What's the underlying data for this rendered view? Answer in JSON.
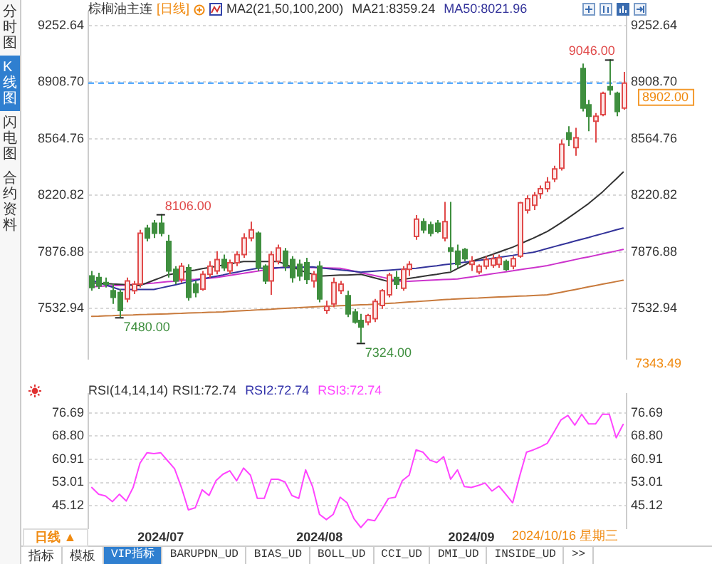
{
  "chart_data": [
    {
      "type": "candlestick",
      "title": "棕榈油主连",
      "subtitle": "[日线]",
      "legend_title": "MA2(21,50,100,200)",
      "legend": "top",
      "tick_labels": "y",
      "grid": "y",
      "marker": "none",
      "line_style": "solid",
      "categories": [
        null,
        null,
        null,
        null,
        null,
        null,
        null,
        null,
        null,
        null,
        "2024/07",
        null,
        null,
        null,
        null,
        null,
        null,
        null,
        null,
        null,
        null,
        null,
        null,
        null,
        null,
        null,
        null,
        null,
        null,
        null,
        null,
        null,
        null,
        "2024/08",
        null,
        null,
        null,
        null,
        null,
        null,
        null,
        null,
        null,
        null,
        null,
        null,
        null,
        null,
        null,
        null,
        null,
        null,
        null,
        null,
        null,
        "2024/09",
        null,
        null,
        null,
        null,
        null,
        null,
        null,
        null,
        null,
        null,
        null,
        null,
        null,
        null,
        null,
        null,
        null,
        null,
        null,
        null,
        null,
        null
      ],
      "ohlc": [
        [
          7730,
          7760,
          7640,
          7660
        ],
        [
          7720,
          7750,
          7650,
          7670
        ],
        [
          7690,
          7720,
          7660,
          7680
        ],
        [
          7640,
          7680,
          7560,
          7600
        ],
        [
          7630,
          7650,
          7480,
          7520
        ],
        [
          7590,
          7720,
          7570,
          7700
        ],
        [
          7640,
          7700,
          7620,
          7680
        ],
        [
          7680,
          8010,
          7660,
          7990
        ],
        [
          8020,
          8040,
          7940,
          7960
        ],
        [
          8050,
          8070,
          7960,
          7990
        ],
        [
          8050,
          8106,
          7970,
          7990
        ],
        [
          7940,
          7980,
          7720,
          7760
        ],
        [
          7770,
          7790,
          7680,
          7700
        ],
        [
          7710,
          7810,
          7690,
          7790
        ],
        [
          7780,
          7800,
          7580,
          7600
        ],
        [
          7680,
          7700,
          7600,
          7630
        ],
        [
          7650,
          7760,
          7640,
          7740
        ],
        [
          7740,
          7820,
          7720,
          7790
        ],
        [
          7760,
          7880,
          7740,
          7830
        ],
        [
          7830,
          7860,
          7760,
          7780
        ],
        [
          7760,
          7830,
          7740,
          7810
        ],
        [
          7810,
          7880,
          7790,
          7860
        ],
        [
          7860,
          7990,
          7840,
          7960
        ],
        [
          7960,
          8060,
          7940,
          8010
        ],
        [
          7990,
          8000,
          7760,
          7780
        ],
        [
          7790,
          7800,
          7680,
          7700
        ],
        [
          7700,
          7880,
          7615,
          7860
        ],
        [
          7820,
          7920,
          7800,
          7900
        ],
        [
          7880,
          7900,
          7760,
          7790
        ],
        [
          7830,
          7850,
          7690,
          7720
        ],
        [
          7800,
          7830,
          7700,
          7730
        ],
        [
          7810,
          7840,
          7680,
          7710
        ],
        [
          7700,
          7760,
          7660,
          7740
        ],
        [
          7790,
          7820,
          7570,
          7590
        ],
        [
          7520,
          7580,
          7500,
          7545
        ],
        [
          7560,
          7720,
          7540,
          7690
        ],
        [
          7640,
          7700,
          7620,
          7680
        ],
        [
          7610,
          7640,
          7480.5,
          7500
        ],
        [
          7510,
          7530,
          7440,
          7450
        ],
        [
          7460,
          7500,
          7324,
          7420
        ],
        [
          7450,
          7500,
          7430,
          7490
        ],
        [
          7470,
          7590,
          7450,
          7575
        ],
        [
          7550,
          7650,
          7530,
          7640
        ],
        [
          7615,
          7750,
          7600,
          7735
        ],
        [
          7720,
          7760,
          7650,
          7680
        ],
        [
          7655,
          7790,
          7640,
          7770
        ],
        [
          7770,
          7820,
          7730,
          7800
        ],
        [
          7970,
          8100,
          7950,
          8075
        ],
        [
          8060,
          8080,
          7990,
          8010
        ],
        [
          8040,
          8060,
          7970,
          7990
        ],
        [
          8050,
          8070,
          7990,
          8000
        ],
        [
          7960,
          8180,
          7940,
          8060
        ],
        [
          7900,
          8180,
          7760,
          7880
        ],
        [
          7880,
          7920,
          7780,
          7800
        ],
        [
          7890,
          7900,
          7820,
          7835
        ],
        [
          7800,
          7850,
          7760,
          7820
        ],
        [
          7755,
          7800,
          7740,
          7790
        ],
        [
          7790,
          7850,
          7770,
          7830
        ],
        [
          7795,
          7860,
          7780,
          7835
        ],
        [
          7800,
          7860,
          7780,
          7840
        ],
        [
          7818,
          7830,
          7760,
          7770
        ],
        [
          7790,
          7850,
          7770,
          7835
        ],
        [
          7850,
          8180,
          7840,
          8175
        ],
        [
          8130,
          8220,
          8110,
          8200
        ],
        [
          8160,
          8240,
          8130,
          8220
        ],
        [
          8230,
          8280,
          8200,
          8260
        ],
        [
          8260,
          8330,
          8240,
          8300
        ],
        [
          8320,
          8400,
          8300,
          8380
        ],
        [
          8385,
          8560,
          8370,
          8530
        ],
        [
          8600,
          8640,
          8520,
          8560
        ],
        [
          8510,
          8630,
          8460,
          8570
        ],
        [
          8990,
          9020,
          8730,
          8750
        ],
        [
          8770,
          8800,
          8610,
          8700
        ],
        [
          8670,
          8720,
          8540,
          8700
        ],
        [
          8710,
          8850,
          8700,
          8840
        ],
        [
          8880,
          9046,
          8830,
          8860
        ],
        [
          8840,
          8850,
          8700,
          8730
        ],
        [
          8750,
          8970,
          8740,
          8902
        ]
      ],
      "series": [
        {
          "type": "line",
          "name": "MA21:8359.24",
          "color": "#333333",
          "values": [
            7688,
            7686,
            7684,
            7681,
            7679,
            7677,
            7674,
            7672,
            7688,
            7704,
            7720,
            7737,
            7744,
            7752,
            7759,
            7766,
            7774,
            7781,
            7788,
            7796,
            7803,
            7811,
            7818,
            7818,
            7818,
            7818,
            7818,
            7818,
            7802,
            7785,
            7769,
            7753,
            7741,
            7729,
            7731,
            7733,
            7735,
            7736,
            7738,
            7740,
            7729,
            7718,
            7707,
            7696,
            7702,
            7709,
            7715,
            7721,
            7728,
            7734,
            7740,
            7747,
            7753,
            7775,
            7796,
            7818,
            7832,
            7846,
            7860,
            7875,
            7890,
            7905,
            7923,
            7942,
            7960,
            7980,
            8000,
            8026,
            8053,
            8081,
            8110,
            8140,
            8170,
            8205,
            8240,
            8280,
            8320,
            8361
          ]
        },
        {
          "type": "line",
          "name": "MA50:8021.96",
          "color": "#33339a",
          "values": [
            7704,
            7690,
            7676,
            7662,
            7648,
            7648,
            7648,
            7648,
            7648,
            7648,
            7657,
            7666,
            7675,
            7685,
            7694,
            7703,
            7712,
            7720,
            7728,
            7736,
            7745,
            7753,
            7761,
            7769,
            7777,
            7778,
            7779,
            7780,
            7781,
            7782,
            7783,
            7784,
            7785,
            7780,
            7776,
            7771,
            7767,
            7762,
            7758,
            7753,
            7756,
            7759,
            7762,
            7765,
            7768,
            7771,
            7774,
            7777,
            7782,
            7787,
            7792,
            7798,
            7803,
            7808,
            7813,
            7818,
            7824,
            7830,
            7837,
            7843,
            7849,
            7855,
            7862,
            7868,
            7874,
            7885,
            7897,
            7908,
            7919,
            7930,
            7942,
            7953,
            7964,
            7976,
            7987,
            7998,
            8010,
            8021
          ]
        },
        {
          "type": "line",
          "color": "#cc33cc",
          "values": [
            7664,
            7666,
            7669,
            7671,
            7673,
            7675,
            7678,
            7680,
            7684,
            7687,
            7691,
            7695,
            7698,
            7702,
            7706,
            7709,
            7713,
            7716,
            7720,
            7727,
            7733,
            7740,
            7746,
            7753,
            7759,
            7766,
            7772,
            7779,
            7785,
            7784,
            7783,
            7782,
            7781,
            7780,
            7779,
            7778,
            7777,
            7768,
            7759,
            7750,
            7741,
            7732,
            7723,
            7714,
            7705,
            7696,
            7698,
            7700,
            7702,
            7704,
            7706,
            7708,
            7710,
            7712,
            7718,
            7724,
            7730,
            7737,
            7743,
            7749,
            7755,
            7761,
            7768,
            7774,
            7780,
            7786,
            7793,
            7802,
            7811,
            7820,
            7829,
            7838,
            7846,
            7855,
            7864,
            7873,
            7882,
            7891
          ]
        },
        {
          "type": "line",
          "color": "#c87a3c",
          "values": [
            7485,
            7486,
            7488,
            7489,
            7491,
            7492,
            7493,
            7495,
            7496,
            7498,
            7499,
            7500,
            7502,
            7503,
            7505,
            7506,
            7507,
            7509,
            7510,
            7512,
            7515,
            7517,
            7519,
            7521,
            7524,
            7526,
            7528,
            7531,
            7533,
            7535,
            7537,
            7540,
            7542,
            7544,
            7546,
            7547,
            7549,
            7551,
            7553,
            7555,
            7556,
            7558,
            7561,
            7564,
            7566,
            7569,
            7572,
            7574,
            7577,
            7580,
            7583,
            7586,
            7588,
            7591,
            7593,
            7595,
            7596,
            7598,
            7600,
            7602,
            7604,
            7606,
            7608,
            7609,
            7611,
            7613,
            7615,
            7623,
            7631,
            7639,
            7647,
            7655,
            7664,
            7672,
            7680,
            7688,
            7696,
            7704
          ]
        }
      ],
      "ylim": [
        7226,
        9334
      ],
      "yticks": [
        7532.94,
        7876.88,
        8220.82,
        8564.76,
        {
          "value": 8908.7,
          "label": "8908.70"
        },
        9252.64
      ],
      "y2lim": [
        7226,
        9334
      ],
      "y2ticks": [
        7532.94,
        7876.88,
        8220.82,
        8564.76,
        {
          "value": 8908.7,
          "label": "8908.70"
        },
        9252.64
      ],
      "ref_lines": [
        {
          "axis": "y",
          "value": 8902,
          "label": "8902.00",
          "color": "#3399ff",
          "line_style": "dashed"
        }
      ],
      "annotations": [
        "9046.00",
        "8106.00",
        "7480.00",
        "7324.00",
        "7343.49"
      ]
    },
    {
      "type": "line",
      "legend_title": "RSI(14,14,14)",
      "legend": "top left",
      "grid": "y",
      "marker": "none",
      "line_style": "solid",
      "categories": [
        null,
        null,
        null,
        null,
        null,
        null,
        null,
        null,
        null,
        null,
        "2024/07",
        null,
        null,
        null,
        null,
        null,
        null,
        null,
        null,
        null,
        null,
        null,
        null,
        null,
        null,
        null,
        null,
        null,
        null,
        null,
        null,
        null,
        null,
        "2024/08",
        null,
        null,
        null,
        null,
        null,
        null,
        null,
        null,
        null,
        null,
        null,
        null,
        null,
        null,
        null,
        null,
        null,
        null,
        null,
        null,
        null,
        "2024/09",
        null,
        null,
        null,
        null,
        null,
        null,
        null,
        null,
        null,
        null,
        null,
        null,
        null,
        null,
        null,
        null,
        null,
        null,
        null,
        null,
        null,
        null
      ],
      "series": [
        {
          "name": "RSI3:72.74",
          "color": "#ff44ff",
          "values": [
            51.3,
            49.0,
            48.4,
            46.5,
            49.0,
            46.7,
            51.3,
            59.6,
            63.1,
            62.8,
            63.1,
            60.4,
            57.7,
            51.3,
            43.7,
            44.4,
            50.5,
            48.6,
            53.6,
            55.8,
            57.0,
            53.6,
            57.9,
            55.5,
            47.6,
            47.6,
            54.1,
            54.1,
            53.2,
            48.6,
            47.6,
            57.3,
            51.6,
            42.2,
            40.4,
            42.2,
            48.0,
            46.1,
            40.7,
            37.7,
            40.4,
            40.0,
            43.7,
            47.6,
            48.0,
            53.6,
            55.5,
            64.1,
            63.3,
            60.6,
            59.8,
            61.8,
            54.1,
            57.3,
            51.6,
            51.3,
            52.0,
            52.8,
            50.1,
            51.8,
            49.0,
            46.1,
            55.1,
            63.3,
            64.1,
            65.1,
            66.3,
            70.2,
            74.3,
            75.8,
            72.5,
            76.2,
            72.9,
            72.9,
            76.2,
            76.2,
            68.2,
            72.74
          ]
        }
      ],
      "ylim": [
        37.4,
        83.2
      ],
      "yticks": [
        45.12,
        53.01,
        60.91,
        {
          "value": 68.8,
          "label": "68.80"
        },
        76.69
      ],
      "y2lim": [
        37.4,
        83.2
      ],
      "y2ticks": [
        45.12,
        53.01,
        60.91,
        {
          "value": 68.8,
          "label": "68.80"
        },
        76.69
      ],
      "annotations": [
        "RSI1:72.74",
        "RSI2:72.74",
        "2024/10/16 星期三",
        "日线 ▲",
        "分时图",
        "K线图",
        "闪电图",
        "合约资料",
        "指标",
        "模板",
        "VIP指标",
        "BARUPDN_UD",
        "BIAS_UD",
        "BOLL_UD",
        "CCI_UD",
        "DMI_UD",
        "INSIDE_UD",
        ">>"
      ]
    }
  ]
}
